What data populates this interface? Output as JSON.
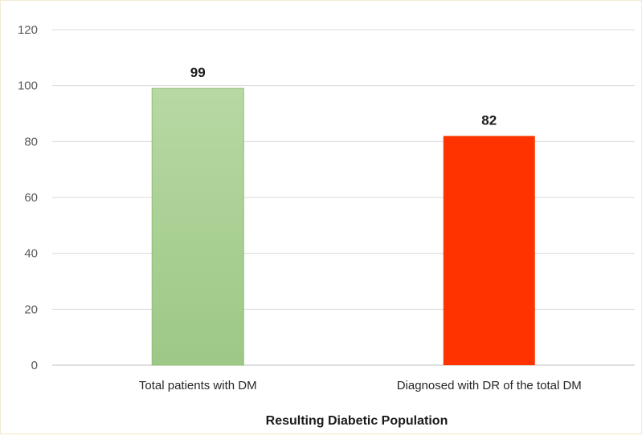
{
  "chart_data": {
    "type": "bar",
    "categories": [
      "Total patients with DM",
      "Diagnosed with DR of the total DM"
    ],
    "values": [
      99,
      82
    ],
    "data_labels": [
      "99",
      "82"
    ],
    "bar_colors": [
      "#a8cf8e",
      "#ff3300"
    ],
    "y_ticks": [
      "0",
      "20",
      "40",
      "60",
      "80",
      "100",
      "120"
    ],
    "ylim": [
      0,
      120
    ],
    "xlabel": "Resulting Diabetic Population",
    "ylabel": "",
    "title": "",
    "grid": true,
    "legend": "none"
  }
}
